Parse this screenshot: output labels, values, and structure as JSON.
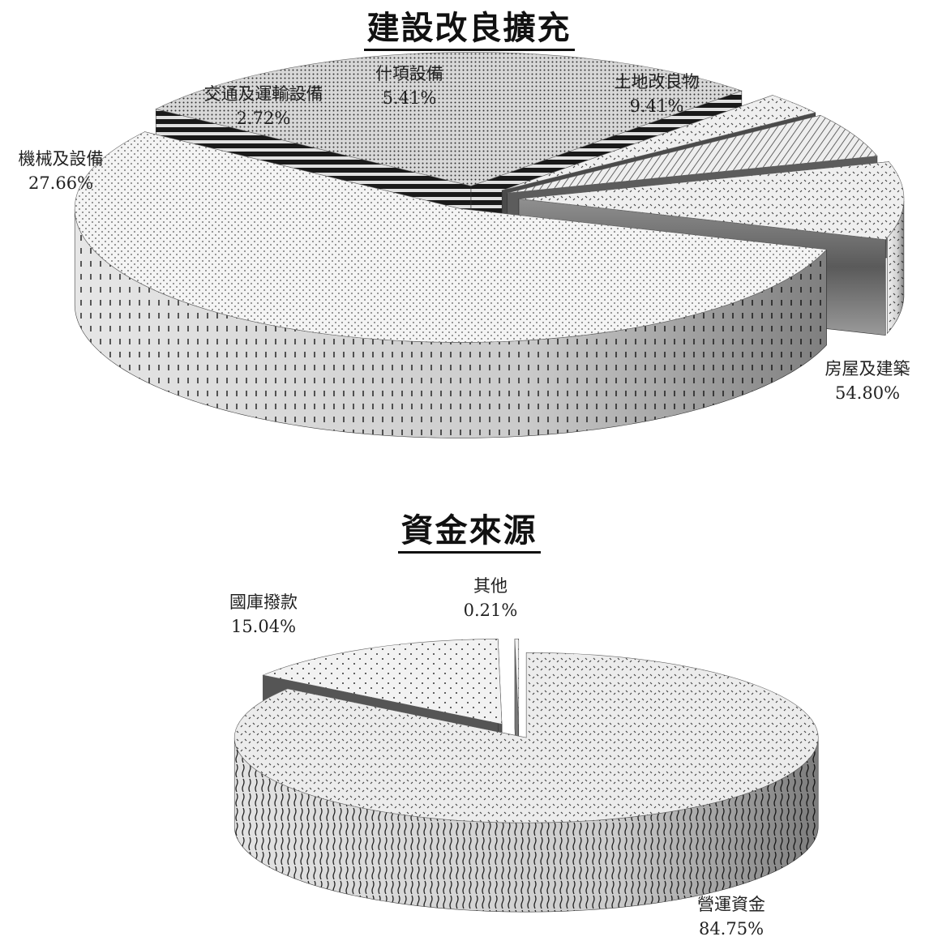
{
  "chart_data": [
    {
      "type": "pie",
      "title": "建設改良擴充",
      "slices": [
        {
          "name": "房屋及建築",
          "value": 54.8,
          "label": "54.80%"
        },
        {
          "name": "機械及設備",
          "value": 27.66,
          "label": "27.66%"
        },
        {
          "name": "交通及運輸設備",
          "value": 2.72,
          "label": "2.72%"
        },
        {
          "name": "什項設備",
          "value": 5.41,
          "label": "5.41%"
        },
        {
          "name": "土地改良物",
          "value": 9.41,
          "label": "9.41%"
        }
      ],
      "style": "3d-exploded",
      "legend": "none"
    },
    {
      "type": "pie",
      "title": "資金來源",
      "slices": [
        {
          "name": "營運資金",
          "value": 84.75,
          "label": "84.75%"
        },
        {
          "name": "國庫撥款",
          "value": 15.04,
          "label": "15.04%"
        },
        {
          "name": "其他",
          "value": 0.21,
          "label": "0.21%"
        }
      ],
      "style": "3d-exploded",
      "legend": "none"
    }
  ]
}
